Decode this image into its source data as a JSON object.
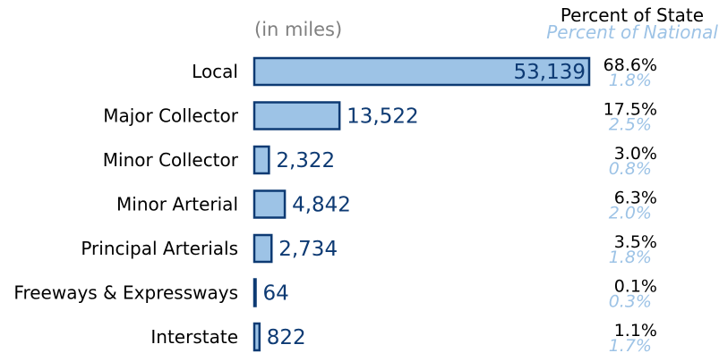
{
  "chart_data": {
    "type": "bar",
    "orientation": "horizontal",
    "unit_note": "(in miles)",
    "header_state": "Percent of State",
    "header_national": "Percent of National",
    "categories": [
      "Local",
      "Major Collector",
      "Minor Collector",
      "Minor Arterial",
      "Principal Arterials",
      "Freeways & Expressways",
      "Interstate"
    ],
    "values": [
      53139,
      13522,
      2322,
      4842,
      2734,
      64,
      822
    ],
    "value_labels": [
      "53,139",
      "13,522",
      "2,322",
      "4,842",
      "2,734",
      "64",
      "822"
    ],
    "percent_state": [
      "68.6%",
      "17.5%",
      "3.0%",
      "6.3%",
      "3.5%",
      "0.1%",
      "1.1%"
    ],
    "percent_national": [
      "1.8%",
      "2.5%",
      "0.8%",
      "2.0%",
      "1.8%",
      "0.3%",
      "1.7%"
    ],
    "grid": false,
    "legend": "none",
    "colors": {
      "bar_fill": "#9dc3e6",
      "bar_stroke": "#0d3a73",
      "value_text": "#0d3a73",
      "unit_note": "#808080",
      "category_text": "#000000",
      "state_text": "#000000",
      "national_text": "#9dc3e6"
    }
  }
}
